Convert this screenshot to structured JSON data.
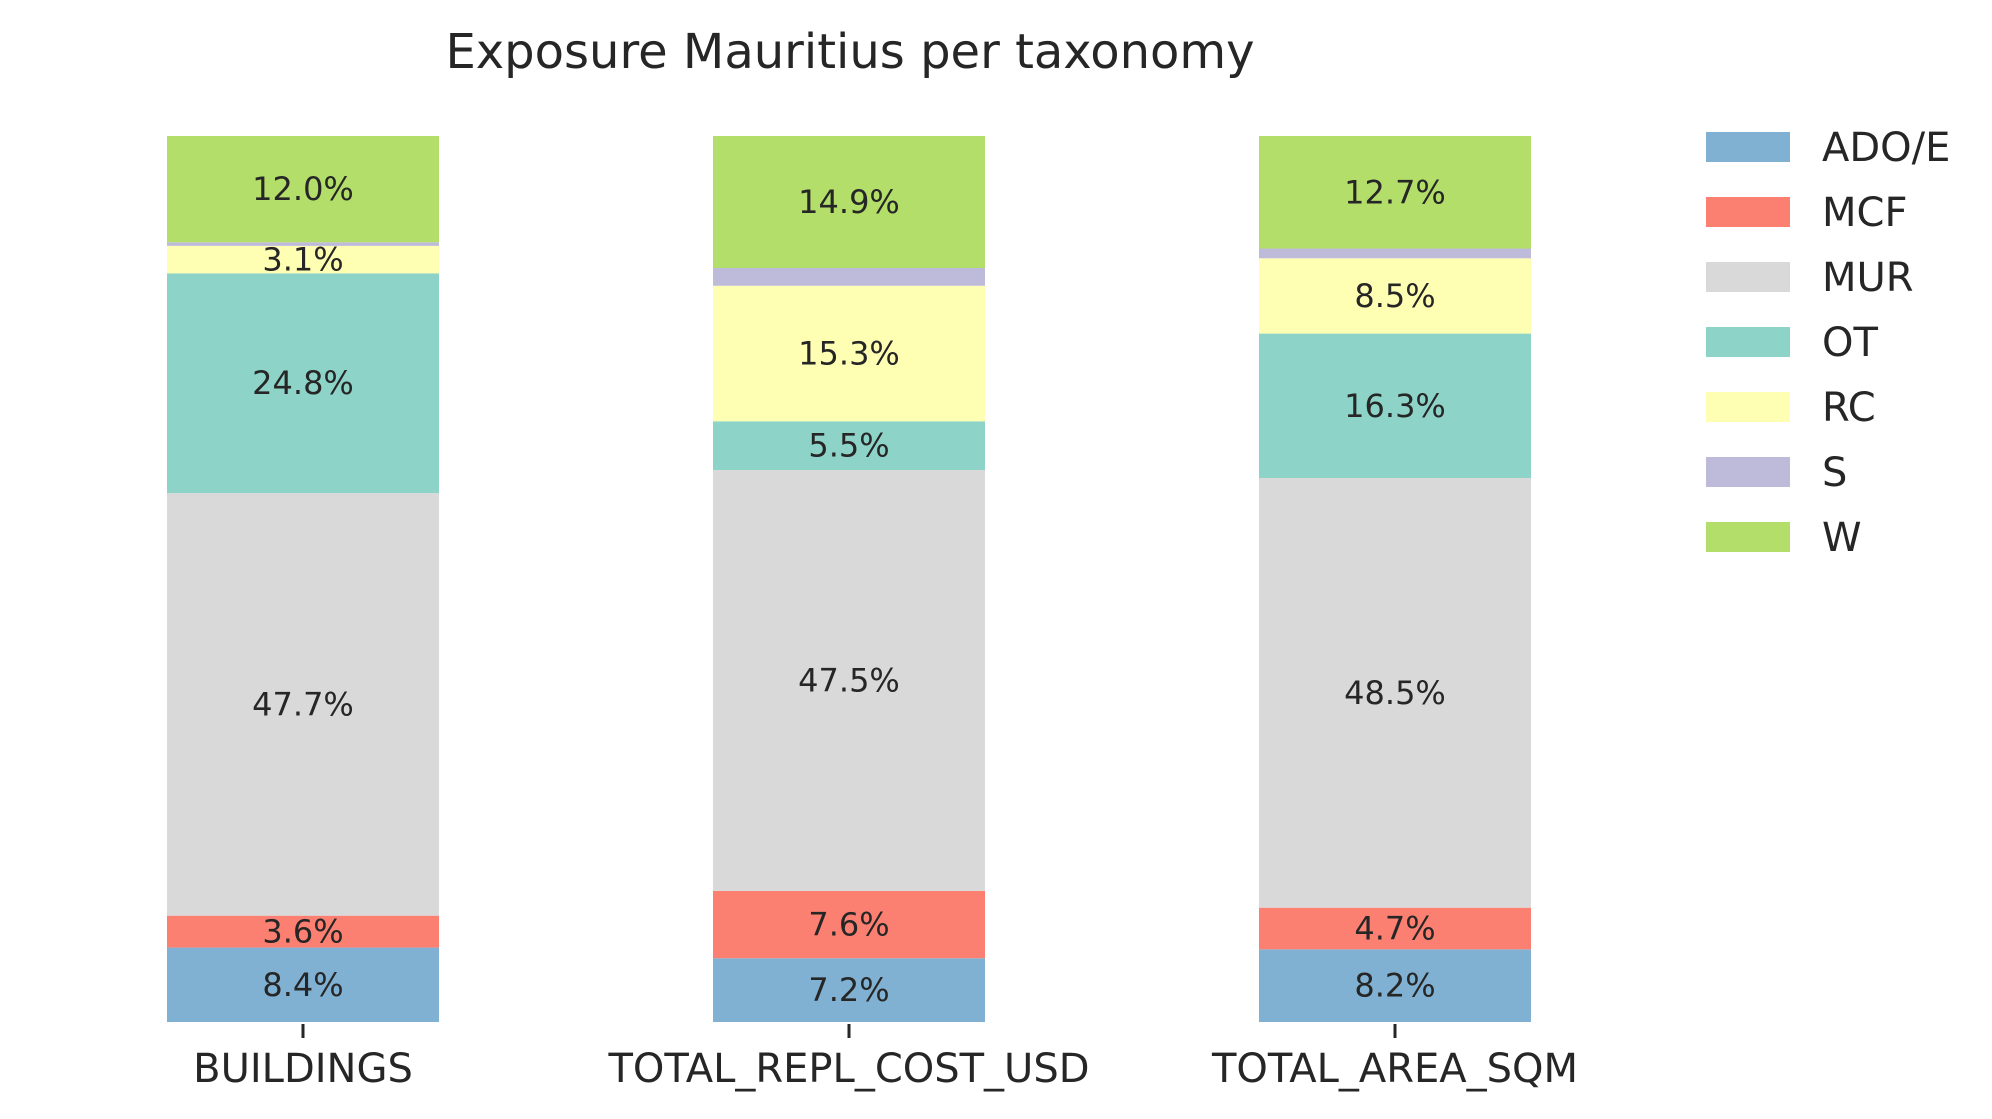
{
  "chart_data": {
    "type": "bar",
    "stacked": true,
    "normalized": true,
    "title": "Exposure Mauritius per taxonomy",
    "xlabel": "",
    "ylabel": "",
    "categories": [
      "BUILDINGS",
      "TOTAL_REPL_COST_USD",
      "TOTAL_AREA_SQM"
    ],
    "ylim": [
      0,
      100
    ],
    "grid": false,
    "legend_position": "right",
    "series": [
      {
        "name": "ADO/E",
        "color": "#80b1d3",
        "values": [
          8.4,
          7.2,
          8.2
        ],
        "labels": [
          "8.4%",
          "7.2%",
          "8.2%"
        ]
      },
      {
        "name": "MCF",
        "color": "#fb8072",
        "values": [
          3.6,
          7.6,
          4.7
        ],
        "labels": [
          "3.6%",
          "7.6%",
          "4.7%"
        ]
      },
      {
        "name": "MUR",
        "color": "#d9d9d9",
        "values": [
          47.7,
          47.5,
          48.5
        ],
        "labels": [
          "47.7%",
          "47.5%",
          "48.5%"
        ]
      },
      {
        "name": "OT",
        "color": "#8dd3c7",
        "values": [
          24.8,
          5.5,
          16.3
        ],
        "labels": [
          "24.8%",
          "5.5%",
          "16.3%"
        ]
      },
      {
        "name": "RC",
        "color": "#ffffb3",
        "values": [
          3.1,
          15.3,
          8.5
        ],
        "labels": [
          "3.1%",
          "15.3%",
          "8.5%"
        ]
      },
      {
        "name": "S",
        "color": "#bebada",
        "values": [
          0.4,
          2.0,
          1.1
        ],
        "labels": [
          "",
          "",
          ""
        ]
      },
      {
        "name": "W",
        "color": "#b3de69",
        "values": [
          12.0,
          14.9,
          12.7
        ],
        "labels": [
          "12.0%",
          "14.9%",
          "12.7%"
        ]
      }
    ]
  }
}
